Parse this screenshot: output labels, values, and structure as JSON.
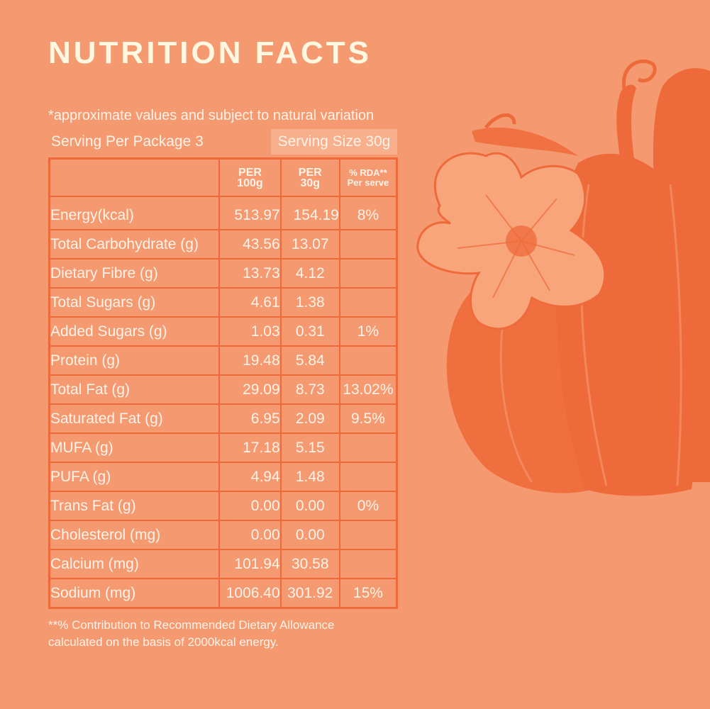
{
  "title": "NUTRITION FACTS",
  "approx_note": "*approximate values and subject to natural variation",
  "serving_per_package": "Serving Per Package 3",
  "serving_size": "Serving Size 30g",
  "columns": {
    "per100_line1": "PER",
    "per100_line2": "100g",
    "per30_line1": "PER",
    "per30_line2": "30g",
    "rda_line1": "% RDA**",
    "rda_line2": "Per serve"
  },
  "rows": [
    {
      "label": "Energy(kcal)",
      "per100": "513.97",
      "per30": "154.19",
      "rda": "8%"
    },
    {
      "label": "Total Carbohydrate (g)",
      "per100": "43.56",
      "per30": "13.07",
      "rda": ""
    },
    {
      "label": "Dietary Fibre (g)",
      "per100": "13.73",
      "per30": "4.12",
      "rda": ""
    },
    {
      "label": "Total Sugars (g)",
      "per100": "4.61",
      "per30": "1.38",
      "rda": ""
    },
    {
      "label": "Added Sugars (g)",
      "per100": "1.03",
      "per30": "0.31",
      "rda": "1%"
    },
    {
      "label": "Protein (g)",
      "per100": "19.48",
      "per30": "5.84",
      "rda": ""
    },
    {
      "label": "Total Fat (g)",
      "per100": "29.09",
      "per30": "8.73",
      "rda": "13.02%"
    },
    {
      "label": "Saturated Fat (g)",
      "per100": "6.95",
      "per30": "2.09",
      "rda": "9.5%"
    },
    {
      "label": "MUFA (g)",
      "per100": "17.18",
      "per30": "5.15",
      "rda": ""
    },
    {
      "label": "PUFA (g)",
      "per100": "4.94",
      "per30": "1.48",
      "rda": ""
    },
    {
      "label": "Trans Fat (g)",
      "per100": "0.00",
      "per30": "0.00",
      "rda": "0%"
    },
    {
      "label": "Cholesterol (mg)",
      "per100": "0.00",
      "per30": "0.00",
      "rda": ""
    },
    {
      "label": "Calcium (mg)",
      "per100": "101.94",
      "per30": "30.58",
      "rda": ""
    },
    {
      "label": "Sodium (mg)",
      "per100": "1006.40",
      "per30": "301.92",
      "rda": "15%"
    }
  ],
  "footnote_line1": "**% Contribution to Recommended Dietary Allowance",
  "footnote_line2": "calculated on the basis of 2000kcal energy.",
  "colors": {
    "background": "#f59a70",
    "accent": "#ef6a3a",
    "text": "#fff2e8",
    "flower": "#f8a57c"
  },
  "illustration_icon": "pumpkin-flower-illustration"
}
